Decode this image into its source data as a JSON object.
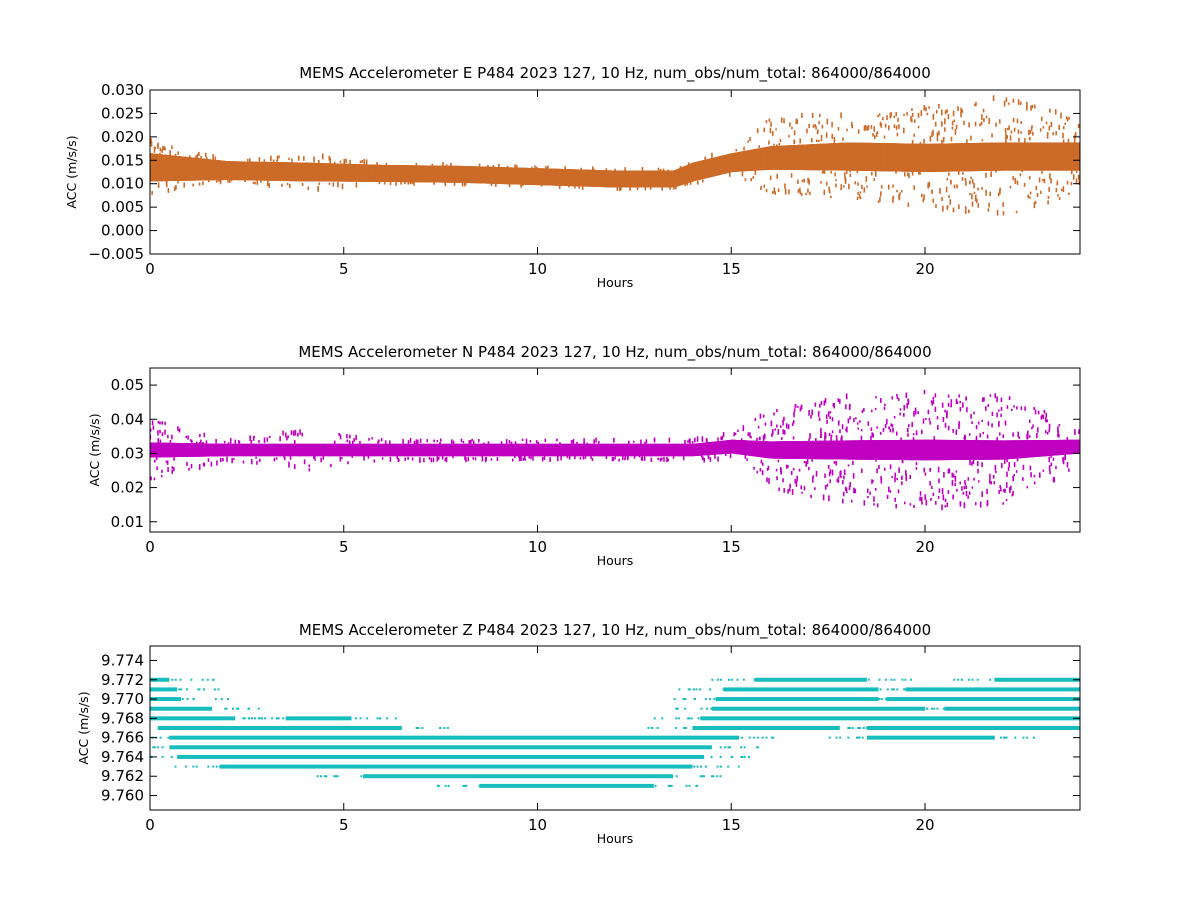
{
  "chart_data": [
    {
      "type": "scatter",
      "title": "MEMS Accelerometer E P484 2023 127, 10 Hz, num_obs/num_total: 864000/864000",
      "xlabel": "Hours",
      "ylabel": "ACC (m/s/s)",
      "xlim": [
        0,
        24
      ],
      "ylim": [
        -0.005,
        0.03
      ],
      "xticks": [
        0,
        5,
        10,
        15,
        20
      ],
      "xtick_labels": [
        "0",
        "5",
        "10",
        "15",
        "20"
      ],
      "yticks": [
        -0.005,
        0.0,
        0.005,
        0.01,
        0.015,
        0.02,
        0.025,
        0.03
      ],
      "ytick_labels": [
        "−0.005",
        "0.000",
        "0.005",
        "0.010",
        "0.015",
        "0.020",
        "0.025",
        "0.030"
      ],
      "grid": false,
      "color": "#cc6a28",
      "series_profile": {
        "hours": [
          0,
          2,
          4,
          6,
          8,
          10,
          12,
          13.5,
          14,
          15,
          16,
          18,
          20,
          22,
          24
        ],
        "center": [
          0.0135,
          0.0128,
          0.0125,
          0.0122,
          0.012,
          0.0115,
          0.011,
          0.011,
          0.0125,
          0.0145,
          0.0155,
          0.0158,
          0.0155,
          0.0158,
          0.0158
        ],
        "band_halfwidth": [
          0.003,
          0.002,
          0.002,
          0.0018,
          0.0018,
          0.0018,
          0.0018,
          0.0018,
          0.002,
          0.002,
          0.0025,
          0.003,
          0.003,
          0.003,
          0.003
        ],
        "spike_extent": [
          0.006,
          0.002,
          0.004,
          0.002,
          0.002,
          0.002,
          0.002,
          0.002,
          0.002,
          0.002,
          0.009,
          0.009,
          0.011,
          0.013,
          0.008
        ]
      }
    },
    {
      "type": "scatter",
      "title": "MEMS Accelerometer N P484 2023 127, 10 Hz, num_obs/num_total: 864000/864000",
      "xlabel": "Hours",
      "ylabel": "ACC (m/s/s)",
      "xlim": [
        0,
        24
      ],
      "ylim": [
        0.007,
        0.055
      ],
      "xticks": [
        0,
        5,
        10,
        15,
        20
      ],
      "xtick_labels": [
        "0",
        "5",
        "10",
        "15",
        "20"
      ],
      "yticks": [
        0.01,
        0.02,
        0.03,
        0.04,
        0.05
      ],
      "ytick_labels": [
        "0.01",
        "0.02",
        "0.03",
        "0.04",
        "0.05"
      ],
      "grid": false,
      "color": "#c000c0",
      "series_profile": {
        "hours": [
          0,
          2,
          4,
          6,
          8,
          10,
          12,
          14,
          15,
          16,
          18,
          20,
          22,
          24
        ],
        "center": [
          0.031,
          0.031,
          0.031,
          0.031,
          0.031,
          0.031,
          0.031,
          0.031,
          0.032,
          0.031,
          0.031,
          0.031,
          0.031,
          0.032
        ],
        "band_halfwidth": [
          0.0022,
          0.0018,
          0.0018,
          0.0018,
          0.0018,
          0.0018,
          0.0018,
          0.0018,
          0.002,
          0.0025,
          0.0028,
          0.003,
          0.0028,
          0.002
        ],
        "spike_extent": [
          0.009,
          0.003,
          0.006,
          0.003,
          0.003,
          0.003,
          0.003,
          0.003,
          0.004,
          0.012,
          0.016,
          0.017,
          0.016,
          0.006
        ]
      }
    },
    {
      "type": "scatter",
      "title": "MEMS Accelerometer Z P484 2023 127, 10 Hz, num_obs/num_total: 864000/864000",
      "xlabel": "Hours",
      "ylabel": "ACC (m/s/s)",
      "xlim": [
        0,
        24
      ],
      "ylim": [
        9.7585,
        9.7755
      ],
      "xticks": [
        0,
        5,
        10,
        15,
        20
      ],
      "xtick_labels": [
        "0",
        "5",
        "10",
        "15",
        "20"
      ],
      "yticks": [
        9.76,
        9.762,
        9.764,
        9.766,
        9.768,
        9.77,
        9.772,
        9.774
      ],
      "ytick_labels": [
        "9.760",
        "9.762",
        "9.764",
        "9.766",
        "9.768",
        "9.770",
        "9.772",
        "9.774"
      ],
      "grid": false,
      "color": "#17bcbc",
      "levels": [
        {
          "y": 9.772,
          "segments": [
            [
              0,
              0.5
            ],
            [
              15.6,
              18.5
            ],
            [
              21.8,
              24
            ]
          ]
        },
        {
          "y": 9.771,
          "segments": [
            [
              0,
              0.7
            ],
            [
              14.8,
              18.8
            ],
            [
              19.5,
              24
            ]
          ]
        },
        {
          "y": 9.77,
          "segments": [
            [
              0,
              0.8
            ],
            [
              14.6,
              18.8
            ],
            [
              19.0,
              24
            ]
          ]
        },
        {
          "y": 9.769,
          "segments": [
            [
              0,
              1.6
            ],
            [
              14.5,
              20
            ],
            [
              20.5,
              24
            ]
          ]
        },
        {
          "y": 9.768,
          "segments": [
            [
              0,
              2.2
            ],
            [
              3.5,
              5.2
            ],
            [
              14.2,
              24
            ]
          ]
        },
        {
          "y": 9.767,
          "segments": [
            [
              0.2,
              6.5
            ],
            [
              14.0,
              17.8
            ],
            [
              18.5,
              24
            ]
          ]
        },
        {
          "y": 9.766,
          "segments": [
            [
              0.5,
              15.2
            ],
            [
              18.5,
              21.8
            ]
          ]
        },
        {
          "y": 9.765,
          "segments": [
            [
              0.5,
              14.5
            ]
          ]
        },
        {
          "y": 9.764,
          "segments": [
            [
              0.7,
              14.3
            ]
          ]
        },
        {
          "y": 9.763,
          "segments": [
            [
              1.8,
              14.0
            ]
          ]
        },
        {
          "y": 9.762,
          "segments": [
            [
              5.5,
              13.5
            ]
          ]
        },
        {
          "y": 9.761,
          "segments": [
            [
              8.5,
              13.0
            ]
          ]
        }
      ]
    }
  ]
}
